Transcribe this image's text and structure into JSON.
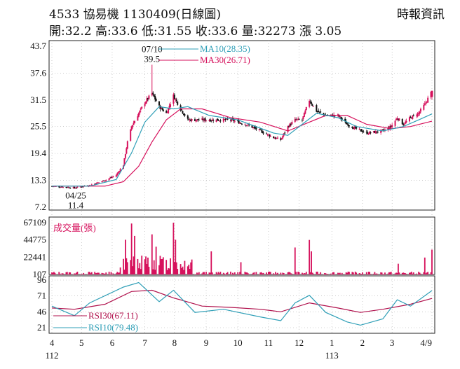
{
  "header": {
    "title": "4533  協易機 1130409(日線圖)",
    "source": "時報資訊",
    "quote": "開:32.2 高:33.6 低:31.55 收:33.6 量:32273 漲 3.05"
  },
  "colors": {
    "up": "#d6115c",
    "down": "#111111",
    "ma10": "#2f9fb7",
    "ma30": "#d6115c",
    "rsi10": "#2f9fb7",
    "rsi30": "#b0104c",
    "volume": "#d6115c"
  },
  "chart_data": [
    {
      "type": "candlestick",
      "ylim": [
        7.2,
        43.7
      ],
      "y_ticks": [
        "43.7",
        "37.6",
        "31.5",
        "25.5",
        "19.4",
        "13.3",
        "7.2"
      ],
      "x_ticks": [
        "4",
        "5",
        "6",
        "7",
        "8",
        "9",
        "10",
        "11",
        "12",
        "1",
        "2",
        "3",
        "4/9"
      ],
      "x_year_labels": [
        "112",
        "113"
      ],
      "annotations": [
        {
          "text": "07/10",
          "note": "high date"
        },
        {
          "text": "39.5",
          "note": "high"
        },
        {
          "text": "04/25",
          "note": "low date"
        },
        {
          "text": "11.4",
          "note": "low"
        }
      ],
      "legend": [
        {
          "name": "MA10(28.35)",
          "value": 28.35
        },
        {
          "name": "MA30(26.71)",
          "value": 26.71
        }
      ],
      "key_points": [
        {
          "x": "2023-04-25",
          "low": 11.4
        },
        {
          "x": "2023-07-10",
          "high": 39.5
        },
        {
          "x": "2024-04-09",
          "open": 32.2,
          "high": 33.6,
          "low": 31.55,
          "close": 33.6
        }
      ],
      "close_path": [
        {
          "x": "2023-04-03",
          "y": 12.0
        },
        {
          "x": "2023-04-25",
          "y": 11.6
        },
        {
          "x": "2023-05-10",
          "y": 12.2
        },
        {
          "x": "2023-05-25",
          "y": 13.3
        },
        {
          "x": "2023-06-05",
          "y": 14.5
        },
        {
          "x": "2023-06-12",
          "y": 16.8
        },
        {
          "x": "2023-06-16",
          "y": 22.0
        },
        {
          "x": "2023-06-20",
          "y": 25.5
        },
        {
          "x": "2023-06-27",
          "y": 28.5
        },
        {
          "x": "2023-07-03",
          "y": 31.0
        },
        {
          "x": "2023-07-10",
          "y": 33.0
        },
        {
          "x": "2023-07-17",
          "y": 30.0
        },
        {
          "x": "2023-07-24",
          "y": 28.5
        },
        {
          "x": "2023-07-31",
          "y": 32.5
        },
        {
          "x": "2023-08-07",
          "y": 29.5
        },
        {
          "x": "2023-08-14",
          "y": 27.0
        },
        {
          "x": "2023-08-28",
          "y": 27.0
        },
        {
          "x": "2023-09-11",
          "y": 27.0
        },
        {
          "x": "2023-09-25",
          "y": 27.0
        },
        {
          "x": "2023-10-10",
          "y": 26.0
        },
        {
          "x": "2023-10-24",
          "y": 24.5
        },
        {
          "x": "2023-11-06",
          "y": 23.0
        },
        {
          "x": "2023-11-13",
          "y": 22.5
        },
        {
          "x": "2023-11-20",
          "y": 25.5
        },
        {
          "x": "2023-11-27",
          "y": 27.0
        },
        {
          "x": "2023-12-04",
          "y": 27.0
        },
        {
          "x": "2023-12-11",
          "y": 31.5
        },
        {
          "x": "2023-12-18",
          "y": 29.0
        },
        {
          "x": "2023-12-27",
          "y": 28.0
        },
        {
          "x": "2024-01-08",
          "y": 28.0
        },
        {
          "x": "2024-01-17",
          "y": 26.0
        },
        {
          "x": "2024-01-26",
          "y": 25.0
        },
        {
          "x": "2024-02-05",
          "y": 24.0
        },
        {
          "x": "2024-02-21",
          "y": 24.5
        },
        {
          "x": "2024-02-29",
          "y": 25.5
        },
        {
          "x": "2024-03-06",
          "y": 27.5
        },
        {
          "x": "2024-03-12",
          "y": 26.0
        },
        {
          "x": "2024-03-19",
          "y": 27.5
        },
        {
          "x": "2024-03-27",
          "y": 28.5
        },
        {
          "x": "2024-04-02",
          "y": 30.5
        },
        {
          "x": "2024-04-09",
          "y": 33.6
        }
      ],
      "ma10_path": [
        {
          "x": "2023-04-03",
          "y": 12.0
        },
        {
          "x": "2023-05-10",
          "y": 12.0
        },
        {
          "x": "2023-06-05",
          "y": 13.5
        },
        {
          "x": "2023-06-20",
          "y": 19.5
        },
        {
          "x": "2023-07-03",
          "y": 26.5
        },
        {
          "x": "2023-07-17",
          "y": 30.0
        },
        {
          "x": "2023-07-31",
          "y": 29.5
        },
        {
          "x": "2023-08-14",
          "y": 30.0
        },
        {
          "x": "2023-09-04",
          "y": 28.0
        },
        {
          "x": "2023-10-02",
          "y": 27.0
        },
        {
          "x": "2023-11-06",
          "y": 24.0
        },
        {
          "x": "2023-11-20",
          "y": 23.5
        },
        {
          "x": "2023-12-04",
          "y": 26.0
        },
        {
          "x": "2023-12-18",
          "y": 28.5
        },
        {
          "x": "2024-01-08",
          "y": 27.5
        },
        {
          "x": "2024-01-26",
          "y": 25.5
        },
        {
          "x": "2024-02-21",
          "y": 24.5
        },
        {
          "x": "2024-03-12",
          "y": 25.5
        },
        {
          "x": "2024-03-27",
          "y": 27.0
        },
        {
          "x": "2024-04-09",
          "y": 28.35
        }
      ],
      "ma30_path": [
        {
          "x": "2023-04-03",
          "y": 12.0
        },
        {
          "x": "2023-05-25",
          "y": 12.0
        },
        {
          "x": "2023-06-12",
          "y": 13.0
        },
        {
          "x": "2023-06-27",
          "y": 16.5
        },
        {
          "x": "2023-07-10",
          "y": 22.0
        },
        {
          "x": "2023-07-24",
          "y": 27.0
        },
        {
          "x": "2023-08-07",
          "y": 29.5
        },
        {
          "x": "2023-08-28",
          "y": 29.5
        },
        {
          "x": "2023-09-25",
          "y": 27.5
        },
        {
          "x": "2023-10-24",
          "y": 26.5
        },
        {
          "x": "2023-11-20",
          "y": 24.5
        },
        {
          "x": "2023-12-11",
          "y": 26.5
        },
        {
          "x": "2023-12-27",
          "y": 28.0
        },
        {
          "x": "2024-01-17",
          "y": 28.0
        },
        {
          "x": "2024-02-05",
          "y": 26.0
        },
        {
          "x": "2024-02-29",
          "y": 25.0
        },
        {
          "x": "2024-03-19",
          "y": 25.5
        },
        {
          "x": "2024-04-09",
          "y": 26.71
        }
      ]
    },
    {
      "type": "bar",
      "label": "成交量(張)",
      "y_ticks": [
        "67109",
        "44775",
        "22441",
        "107"
      ],
      "ylim": [
        107,
        67109
      ],
      "spikes": [
        {
          "x": "2023-06-14",
          "y": 45000
        },
        {
          "x": "2023-06-20",
          "y": 66000
        },
        {
          "x": "2023-06-23",
          "y": 50000
        },
        {
          "x": "2023-07-10",
          "y": 52000
        },
        {
          "x": "2023-07-14",
          "y": 36000
        },
        {
          "x": "2023-07-31",
          "y": 67109
        },
        {
          "x": "2023-08-02",
          "y": 45000
        },
        {
          "x": "2023-09-06",
          "y": 30000
        },
        {
          "x": "2023-10-05",
          "y": 16000
        },
        {
          "x": "2023-11-27",
          "y": 35000
        },
        {
          "x": "2023-12-11",
          "y": 44775
        },
        {
          "x": "2023-12-13",
          "y": 30000
        },
        {
          "x": "2024-03-07",
          "y": 14000
        },
        {
          "x": "2024-04-02",
          "y": 22000
        },
        {
          "x": "2024-04-09",
          "y": 32273
        }
      ]
    },
    {
      "type": "line",
      "y_ticks": [
        "96",
        "71",
        "46",
        "21"
      ],
      "ylim": [
        21,
        96
      ],
      "legend": [
        {
          "name": "RSI30(67.11)",
          "value": 67.11
        },
        {
          "name": "RSI10(79.48)",
          "value": 79.48
        }
      ],
      "rsi10_path": [
        {
          "x": "2023-04-03",
          "y": 55
        },
        {
          "x": "2023-04-25",
          "y": 40
        },
        {
          "x": "2023-05-10",
          "y": 60
        },
        {
          "x": "2023-06-12",
          "y": 85
        },
        {
          "x": "2023-06-27",
          "y": 92
        },
        {
          "x": "2023-07-17",
          "y": 62
        },
        {
          "x": "2023-07-31",
          "y": 80
        },
        {
          "x": "2023-08-21",
          "y": 45
        },
        {
          "x": "2023-09-18",
          "y": 50
        },
        {
          "x": "2023-10-24",
          "y": 38
        },
        {
          "x": "2023-11-13",
          "y": 32
        },
        {
          "x": "2023-11-27",
          "y": 60
        },
        {
          "x": "2023-12-11",
          "y": 72
        },
        {
          "x": "2023-12-27",
          "y": 45
        },
        {
          "x": "2024-01-17",
          "y": 30
        },
        {
          "x": "2024-01-30",
          "y": 25
        },
        {
          "x": "2024-02-21",
          "y": 35
        },
        {
          "x": "2024-03-06",
          "y": 65
        },
        {
          "x": "2024-03-19",
          "y": 55
        },
        {
          "x": "2024-04-09",
          "y": 79.48
        }
      ],
      "rsi30_path": [
        {
          "x": "2023-04-03",
          "y": 52
        },
        {
          "x": "2023-04-25",
          "y": 50
        },
        {
          "x": "2023-05-25",
          "y": 58
        },
        {
          "x": "2023-06-20",
          "y": 78
        },
        {
          "x": "2023-07-10",
          "y": 80
        },
        {
          "x": "2023-07-31",
          "y": 68
        },
        {
          "x": "2023-08-28",
          "y": 55
        },
        {
          "x": "2023-09-25",
          "y": 53
        },
        {
          "x": "2023-10-24",
          "y": 50
        },
        {
          "x": "2023-11-13",
          "y": 46
        },
        {
          "x": "2023-12-11",
          "y": 60
        },
        {
          "x": "2024-01-08",
          "y": 52
        },
        {
          "x": "2024-01-30",
          "y": 45
        },
        {
          "x": "2024-02-21",
          "y": 50
        },
        {
          "x": "2024-03-19",
          "y": 58
        },
        {
          "x": "2024-04-09",
          "y": 67.11
        }
      ]
    }
  ]
}
